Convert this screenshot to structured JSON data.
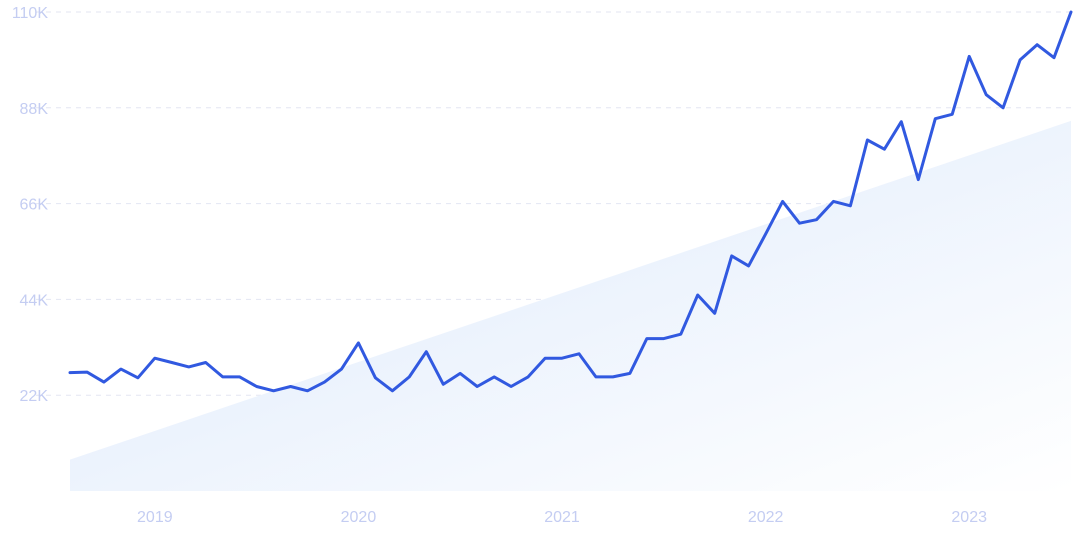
{
  "chart_data": {
    "type": "line",
    "title": "",
    "xlabel": "",
    "ylabel": "",
    "ylim": [
      0,
      110000
    ],
    "xlim": [
      "2018-10",
      "2023-09"
    ],
    "grid": true,
    "y_ticks": [
      {
        "value": 22000,
        "label": "22K"
      },
      {
        "value": 44000,
        "label": "44K"
      },
      {
        "value": 66000,
        "label": "66K"
      },
      {
        "value": 88000,
        "label": "88K"
      },
      {
        "value": 110000,
        "label": "110K"
      }
    ],
    "x_ticks": [
      {
        "value": "2019-03",
        "label": "2019"
      },
      {
        "value": "2020-03",
        "label": "2020"
      },
      {
        "value": "2021-03",
        "label": "2021"
      },
      {
        "value": "2022-03",
        "label": "2022"
      },
      {
        "value": "2023-03",
        "label": "2023"
      }
    ],
    "series": [
      {
        "color": "#3159e0",
        "x": [
          "2018-10",
          "2018-11",
          "2018-12",
          "2019-01",
          "2019-02",
          "2019-03",
          "2019-04",
          "2019-05",
          "2019-06",
          "2019-07",
          "2019-08",
          "2019-09",
          "2019-10",
          "2019-11",
          "2019-12",
          "2020-01",
          "2020-02",
          "2020-03",
          "2020-04",
          "2020-05",
          "2020-06",
          "2020-07",
          "2020-08",
          "2020-09",
          "2020-10",
          "2020-11",
          "2020-12",
          "2021-01",
          "2021-02",
          "2021-03",
          "2021-04",
          "2021-05",
          "2021-06",
          "2021-07",
          "2021-08",
          "2021-09",
          "2021-10",
          "2021-11",
          "2021-12",
          "2022-01",
          "2022-02",
          "2022-03",
          "2022-04",
          "2022-05",
          "2022-06",
          "2022-07",
          "2022-08",
          "2022-09",
          "2022-10",
          "2022-11",
          "2022-12",
          "2023-01",
          "2023-02",
          "2023-03",
          "2023-04",
          "2023-05",
          "2023-06",
          "2023-07",
          "2023-08",
          "2023-09"
        ],
        "values": [
          27200,
          27300,
          25000,
          28000,
          26000,
          30500,
          29500,
          28500,
          29500,
          26200,
          26200,
          24000,
          23000,
          24000,
          23000,
          25000,
          28000,
          34000,
          26000,
          23000,
          26200,
          32000,
          24500,
          27000,
          24000,
          26200,
          24000,
          26200,
          30500,
          30500,
          31500,
          26200,
          26200,
          27000,
          35000,
          35000,
          36000,
          45000,
          40800,
          54000,
          51700,
          59000,
          66500,
          61500,
          62300,
          66500,
          65500,
          80600,
          78500,
          84800,
          71500,
          85500,
          86500,
          99800,
          91000,
          88000,
          99000,
          102500,
          99500,
          110000
        ]
      },
      {
        "type": "area",
        "color": "#e3eefc",
        "x": [
          "2018-10",
          "2023-09"
        ],
        "values": [
          7200,
          85000
        ]
      }
    ]
  }
}
